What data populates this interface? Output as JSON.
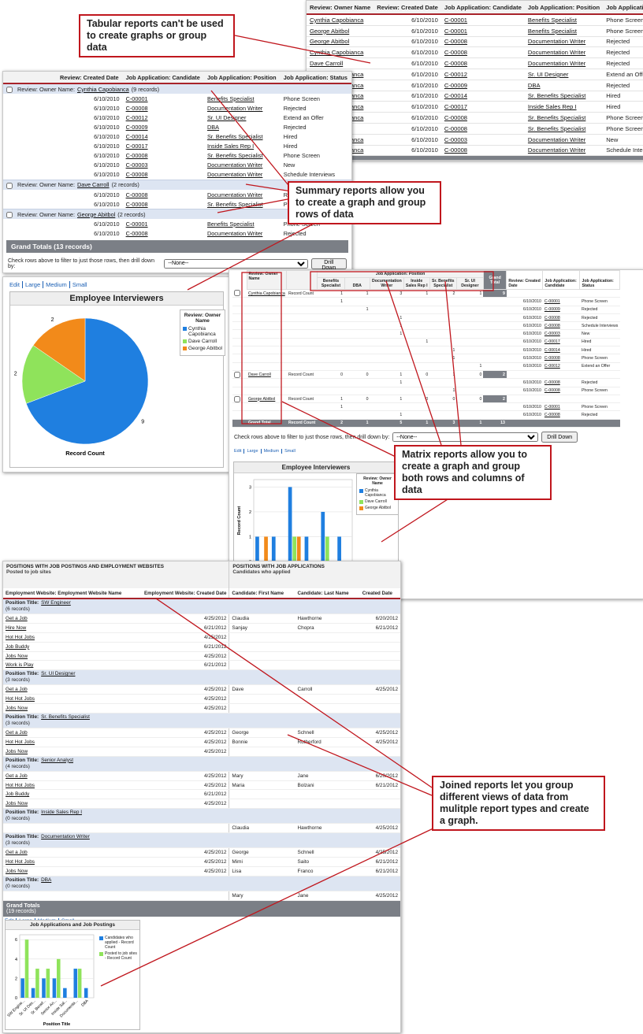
{
  "callouts": [
    "Tabular reports can't be used to create graphs or group data",
    "Summary reports allow you to create a graph and group rows of data",
    "Matrix reports allow you to create a graph and group both rows and columns of data",
    "Joined reports let you group different views of data from mulitple report types and create a graph."
  ],
  "chart_links": [
    "Edit",
    "Large",
    "Medium",
    "Small"
  ],
  "tabular": {
    "headers": [
      "Review: Owner Name",
      "Review: Created Date",
      "Job Application: Candidate",
      "Job Application: Position",
      "Job Application: Status"
    ],
    "rows": [
      [
        "Cynthia Capobianca",
        "6/10/2010",
        "C-00001",
        "Benefits Specialist",
        "Phone Screen"
      ],
      [
        "George Abitbol",
        "6/10/2010",
        "C-00001",
        "Benefits Specialist",
        "Phone Screen"
      ],
      [
        "George Abitbol",
        "6/10/2010",
        "C-00008",
        "Documentation Writer",
        "Rejected"
      ],
      [
        "Cynthia Capobianca",
        "6/10/2010",
        "C-00008",
        "Documentation Writer",
        "Rejected"
      ],
      [
        "Dave Carroll",
        "6/10/2010",
        "C-00008",
        "Documentation Writer",
        "Rejected"
      ],
      [
        "Cynthia Capobianca",
        "6/10/2010",
        "C-00012",
        "Sr. UI Designer",
        "Extend an Offer"
      ],
      [
        "Cynthia Capobianca",
        "6/10/2010",
        "C-00009",
        "DBA",
        "Rejected"
      ],
      [
        "Cynthia Capobianca",
        "6/10/2010",
        "C-00014",
        "Sr. Benefits Specialist",
        "Hired"
      ],
      [
        "Cynthia Capobianca",
        "6/10/2010",
        "C-00017",
        "Inside Sales Rep I",
        "Hired"
      ],
      [
        "Cynthia Capobianca",
        "6/10/2010",
        "C-00008",
        "Sr. Benefits Specialist",
        "Phone Screen"
      ],
      [
        "Dave Carroll",
        "6/10/2010",
        "C-00008",
        "Sr. Benefits Specialist",
        "Phone Screen"
      ],
      [
        "Cynthia Capobianca",
        "6/10/2010",
        "C-00003",
        "Documentation Writer",
        "New"
      ],
      [
        "Cynthia Capobianca",
        "6/10/2010",
        "C-00008",
        "Documentation Writer",
        "Schedule Interviews"
      ]
    ],
    "grand_total": "Grand Totals (13 records)"
  },
  "summary": {
    "headers": [
      "Review: Created Date",
      "Job Application: Candidate",
      "Job Application: Position",
      "Job Application: Status"
    ],
    "group_label": "Review: Owner Name:",
    "groups": [
      {
        "name": "Cynthia Capobianca",
        "count": "(9 records)",
        "rows": [
          [
            "6/10/2010",
            "C-00001",
            "Benefits Specialist",
            "Phone Screen"
          ],
          [
            "6/10/2010",
            "C-00008",
            "Documentation Writer",
            "Rejected"
          ],
          [
            "6/10/2010",
            "C-00012",
            "Sr. UI Designer",
            "Extend an Offer"
          ],
          [
            "6/10/2010",
            "C-00009",
            "DBA",
            "Rejected"
          ],
          [
            "6/10/2010",
            "C-00014",
            "Sr. Benefits Specialist",
            "Hired"
          ],
          [
            "6/10/2010",
            "C-00017",
            "Inside Sales Rep I",
            "Hired"
          ],
          [
            "6/10/2010",
            "C-00008",
            "Sr. Benefits Specialist",
            "Phone Screen"
          ],
          [
            "6/10/2010",
            "C-00003",
            "Documentation Writer",
            "New"
          ],
          [
            "6/10/2010",
            "C-00008",
            "Documentation Writer",
            "Schedule Interviews"
          ]
        ]
      },
      {
        "name": "Dave Carroll",
        "count": "(2 records)",
        "rows": [
          [
            "6/10/2010",
            "C-00008",
            "Documentation Writer",
            "Rejected"
          ],
          [
            "6/10/2010",
            "C-00008",
            "Sr. Benefits Specialist",
            "Phone Screen"
          ]
        ]
      },
      {
        "name": "George Abitbol",
        "count": "(2 records)",
        "rows": [
          [
            "6/10/2010",
            "C-00001",
            "Benefits Specialist",
            "Phone Screen"
          ],
          [
            "6/10/2010",
            "C-00008",
            "Documentation Writer",
            "Rejected"
          ]
        ]
      }
    ],
    "grand_total": "Grand Totals (13 records)",
    "filter_text": "Check rows above to filter to just those rows, then drill down by:",
    "select": "--None--",
    "button": "Drill Down"
  },
  "matrix": {
    "row_header": "Review: Owner Name",
    "col_header": "Job Application: Position",
    "positions": [
      "Benefits Specialist",
      "DBA",
      "Documentation Writer",
      "Inside Sales Rep I",
      "Sr. Benefits Specialist",
      "Sr. UI Designer"
    ],
    "total_header": "Grand Total",
    "detail_headers": [
      "Review: Created Date",
      "Job Application: Candidate",
      "Job Application: Status"
    ],
    "measure": "Record Count",
    "groups": [
      {
        "owner": "Cynthia Capobianca",
        "counts": [
          1,
          1,
          3,
          1,
          2,
          1
        ],
        "total": 9,
        "details": [
          {
            "counts": [
              1,
              null,
              null,
              null,
              null,
              null
            ],
            "date": "6/10/2010",
            "candidate": "C-00001",
            "status": "Phone Screen"
          },
          {
            "counts": [
              null,
              1,
              null,
              null,
              null,
              null
            ],
            "date": "6/10/2010",
            "candidate": "C-00009",
            "status": "Rejected"
          },
          {
            "counts": [
              null,
              null,
              1,
              null,
              null,
              null
            ],
            "date": "6/10/2010",
            "candidate": "C-00008",
            "status": "Rejected"
          },
          {
            "counts": [
              null,
              null,
              1,
              null,
              null,
              null
            ],
            "date": "6/10/2010",
            "candidate": "C-00008",
            "status": "Schedule Interviews"
          },
          {
            "counts": [
              null,
              null,
              1,
              null,
              null,
              null
            ],
            "date": "6/10/2010",
            "candidate": "C-00003",
            "status": "New"
          },
          {
            "counts": [
              null,
              null,
              null,
              1,
              null,
              null
            ],
            "date": "6/10/2010",
            "candidate": "C-00017",
            "status": "Hired"
          },
          {
            "counts": [
              null,
              null,
              null,
              null,
              1,
              null
            ],
            "date": "6/10/2010",
            "candidate": "C-00014",
            "status": "Hired"
          },
          {
            "counts": [
              null,
              null,
              null,
              null,
              1,
              null
            ],
            "date": "6/10/2010",
            "candidate": "C-00008",
            "status": "Phone Screen"
          },
          {
            "counts": [
              null,
              null,
              null,
              null,
              null,
              1
            ],
            "date": "6/10/2010",
            "candidate": "C-00012",
            "status": "Extend an Offer"
          }
        ]
      },
      {
        "owner": "Dave Carroll",
        "counts": [
          0,
          0,
          1,
          0,
          1,
          0
        ],
        "total": 2,
        "details": [
          {
            "counts": [
              null,
              null,
              1,
              null,
              null,
              null
            ],
            "date": "6/10/2010",
            "candidate": "C-00008",
            "status": "Rejected"
          },
          {
            "counts": [
              null,
              null,
              null,
              null,
              1,
              null
            ],
            "date": "6/10/2010",
            "candidate": "C-00008",
            "status": "Phone Screen"
          }
        ]
      },
      {
        "owner": "George Abitbol",
        "counts": [
          1,
          0,
          1,
          0,
          0,
          0
        ],
        "total": 2,
        "details": [
          {
            "counts": [
              1,
              null,
              null,
              null,
              null,
              null
            ],
            "date": "6/10/2010",
            "candidate": "C-00001",
            "status": "Phone Screen"
          },
          {
            "counts": [
              null,
              null,
              1,
              null,
              null,
              null
            ],
            "date": "6/10/2010",
            "candidate": "C-00008",
            "status": "Rejected"
          }
        ]
      }
    ],
    "grand": {
      "label": "Grand Total",
      "counts": [
        2,
        1,
        5,
        1,
        3,
        1
      ],
      "total": 13
    }
  },
  "joined": {
    "blocks": [
      {
        "title": "POSITIONS WITH JOB POSTINGS AND EMPLOYMENT WEBSITES",
        "subtitle": "Posted to job sites",
        "columns": [
          "Employment Website: Employment Website Name",
          "Employment Website: Created Date"
        ]
      },
      {
        "title": "POSITIONS WITH JOB APPLICATIONS",
        "subtitle": "Candidates who applied",
        "columns": [
          "Candidate: First Name",
          "Candidate: Last Name",
          "Created Date"
        ]
      }
    ],
    "group_label": "Position Title:",
    "groups": [
      {
        "title": "SW Engineer",
        "count": "(6 records)",
        "left": [
          [
            "Get a Job",
            "4/25/2012"
          ],
          [
            "Hire Now",
            "6/21/2012"
          ],
          [
            "Hot Hot Jobs",
            "4/25/2012"
          ],
          [
            "Job Buddy",
            "6/21/2012"
          ],
          [
            "Jobs Now",
            "4/25/2012"
          ],
          [
            "Work is Play",
            "6/21/2012"
          ]
        ],
        "right": [
          [
            "Claudia",
            "Hawthorne",
            "6/20/2012"
          ],
          [
            "Sanjay",
            "Chopra",
            "6/21/2012"
          ]
        ]
      },
      {
        "title": "Sr. UI Designer",
        "count": "(3 records)",
        "left": [
          [
            "Get a Job",
            "4/25/2012"
          ],
          [
            "Hot Hot Jobs",
            "4/25/2012"
          ],
          [
            "Jobs Now",
            "4/25/2012"
          ]
        ],
        "right": [
          [
            "Dave",
            "Carroll",
            "4/25/2012"
          ]
        ]
      },
      {
        "title": "Sr. Benefits Specialist",
        "count": "(3 records)",
        "left": [
          [
            "Get a Job",
            "4/25/2012"
          ],
          [
            "Hot Hot Jobs",
            "4/25/2012"
          ],
          [
            "Jobs Now",
            "4/25/2012"
          ]
        ],
        "right": [
          [
            "George",
            "Schnell",
            "4/25/2012"
          ],
          [
            "Bonnie",
            "Rutherford",
            "4/25/2012"
          ]
        ]
      },
      {
        "title": "Senior Analyst",
        "count": "(4 records)",
        "left": [
          [
            "Get a Job",
            "4/25/2012"
          ],
          [
            "Hot Hot Jobs",
            "4/25/2012"
          ],
          [
            "Job Buddy",
            "6/21/2012"
          ],
          [
            "Jobs Now",
            "4/25/2012"
          ]
        ],
        "right": [
          [
            "Mary",
            "Jane",
            "6/20/2012"
          ],
          [
            "Maria",
            "Bolzani",
            "6/21/2012"
          ]
        ]
      },
      {
        "title": "Inside Sales Rep I",
        "count": "(0 records)",
        "left": [],
        "right": [
          [
            "Claudia",
            "Hawthorne",
            "4/25/2012"
          ]
        ]
      },
      {
        "title": "Documentation Writer",
        "count": "(3 records)",
        "left": [
          [
            "Get a Job",
            "4/25/2012"
          ],
          [
            "Hot Hot Jobs",
            "4/25/2012"
          ],
          [
            "Jobs Now",
            "4/25/2012"
          ]
        ],
        "right": [
          [
            "George",
            "Schnell",
            "4/25/2012"
          ],
          [
            "Mimi",
            "Saito",
            "6/21/2012"
          ],
          [
            "Lisa",
            "Franco",
            "6/21/2012"
          ]
        ]
      },
      {
        "title": "DBA",
        "count": "(0 records)",
        "left": [],
        "right": [
          [
            "Mary",
            "Jane",
            "4/25/2012"
          ]
        ]
      }
    ],
    "grand_totals": "Grand Totals",
    "grand_count": "(19 records)"
  },
  "chart_data": [
    {
      "type": "pie",
      "title": "Employee Interviewers",
      "legend_title": "Review: Owner Name",
      "categories": [
        "Cynthia Capobianca",
        "Dave Carroll",
        "George Abitbol"
      ],
      "values": [
        9,
        2,
        2
      ],
      "colors": [
        "#1f7fe0",
        "#8fe35b",
        "#f28a1a"
      ],
      "label": "Record Count"
    },
    {
      "type": "bar",
      "title": "Employee Interviewers",
      "legend_title": "Review: Owner Name",
      "y_label": "Record Count",
      "categories": [
        null,
        null,
        null,
        null,
        null,
        null
      ],
      "series": [
        {
          "name": "Cynthia Capobianca",
          "color": "#1f7fe0",
          "values": [
            1,
            1,
            3,
            1,
            2,
            1
          ]
        },
        {
          "name": "Dave Carroll",
          "color": "#8fe35b",
          "values": [
            0,
            0,
            1,
            0,
            1,
            0
          ]
        },
        {
          "name": "George Abitbol",
          "color": "#f28a1a",
          "values": [
            1,
            0,
            1,
            0,
            0,
            0
          ]
        }
      ],
      "ylim": [
        0,
        3.3
      ],
      "yticks": [
        0,
        1,
        2,
        3
      ],
      "grid": true
    },
    {
      "type": "bar",
      "title": "Job Applications and Job Postings",
      "x_label": "Position Title",
      "categories": [
        "SW Engine...",
        "Sr. UI Des...",
        "Sr. Benef...",
        "Senior An...",
        "Inside Sal...",
        "Documenta...",
        "DBA"
      ],
      "series": [
        {
          "name": "Candidates who applied - Record Count",
          "color": "#1f7fe0",
          "values": [
            2,
            1,
            2,
            2,
            1,
            3,
            1
          ]
        },
        {
          "name": "Posted to job sites - Record Count",
          "color": "#8fe35b",
          "values": [
            6,
            3,
            3,
            4,
            0,
            3,
            0
          ]
        }
      ],
      "ylim": [
        0,
        6.5
      ],
      "yticks": [
        0,
        2,
        4,
        6
      ],
      "grid": true
    }
  ]
}
